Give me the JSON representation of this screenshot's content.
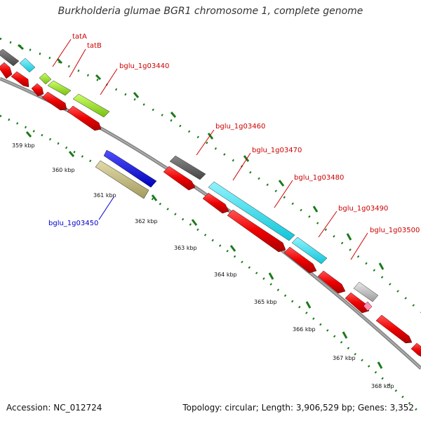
{
  "header": {
    "title": "Burkholderia glumae BGR1 chromosome 1, complete genome"
  },
  "footer": {
    "accession": "Accession: NC_012724",
    "summary": "Topology: circular; Length: 3,906,529 bp; Genes: 3,352"
  },
  "ruler": {
    "labels": [
      "359 kbp",
      "360 kbp",
      "361 kbp",
      "362 kbp",
      "363 kbp",
      "364 kbp",
      "365 kbp",
      "366 kbp",
      "367 kbp",
      "368 kbp"
    ]
  },
  "gene_labels": {
    "tatA": "tatA",
    "tatB": "tatB",
    "g03440": "bglu_1g03440",
    "g03450": "bglu_1g03450",
    "g03460": "bglu_1g03460",
    "g03470": "bglu_1g03470",
    "g03480": "bglu_1g03480",
    "g03490": "bglu_1g03490",
    "g03500": "bglu_1g03500"
  },
  "colors": {
    "cds_forward": "#ee0000",
    "label_red": "#cc0000",
    "label_blue": "#0000cc",
    "backbone": "#888888",
    "ticks": "#1a7a1a",
    "gray_feature": "#555555",
    "light_gray_feature": "#bbbbbb",
    "cyan_feature": "#22d8e8",
    "green_feature": "#99dd22",
    "blue_feature": "#1010dd",
    "khaki_feature": "#bfb57a"
  }
}
